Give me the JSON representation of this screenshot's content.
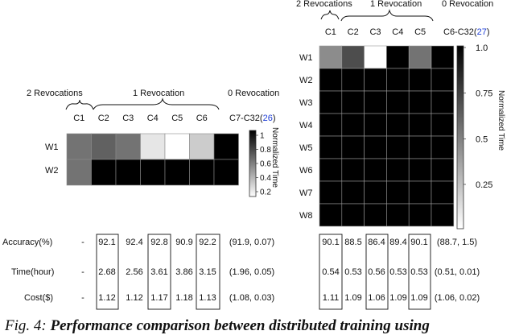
{
  "left": {
    "groups": [
      "2 Revocations",
      "1 Revocation",
      "0 Revocation"
    ],
    "columns": [
      "C1",
      "C2",
      "C3",
      "C4",
      "C5",
      "C6"
    ],
    "last_column_prefix": "C7-C32(",
    "last_column_ref": "26",
    "last_column_suffix": ")",
    "rows": [
      "W1",
      "W2"
    ],
    "colorbar": {
      "label": "Normalized Time",
      "ticks": [
        "1",
        "0.8",
        "0.6",
        "0.4",
        "0.2"
      ]
    }
  },
  "right": {
    "groups": [
      "2 Revocations",
      "1 Revocation",
      "0 Revocation"
    ],
    "columns": [
      "C1",
      "C2",
      "C3",
      "C4",
      "C5"
    ],
    "last_column_prefix": "C6-C32(",
    "last_column_ref": "27",
    "last_column_suffix": ")",
    "rows": [
      "W1",
      "W2",
      "W3",
      "W4",
      "W5",
      "W6",
      "W7",
      "W8"
    ],
    "colorbar": {
      "label": "Normalized Time",
      "ticks": [
        "1.0",
        "0.75",
        "0.5",
        "0.25"
      ]
    }
  },
  "metrics": {
    "labels": [
      "Accuracy(%)",
      "Time(hour)",
      "Cost($)"
    ],
    "left_values": [
      [
        "-",
        "92.1",
        "92.4",
        "92.8",
        "90.9",
        "92.2",
        "(91.9, 0.07)"
      ],
      [
        "-",
        "2.68",
        "2.56",
        "3.61",
        "3.86",
        "3.15",
        "(1.96, 0.05)"
      ],
      [
        "-",
        "1.12",
        "1.12",
        "1.17",
        "1.18",
        "1.13",
        "(1.08, 0.03)"
      ]
    ],
    "right_values": [
      [
        "90.1",
        "88.5",
        "86.4",
        "89.4",
        "90.1",
        "(88.7, 1.5)"
      ],
      [
        "0.54",
        "0.53",
        "0.56",
        "0.53",
        "0.53",
        "(0.51, 0.01)"
      ],
      [
        "1.11",
        "1.09",
        "1.06",
        "1.09",
        "1.09",
        "(1.06, 0.02)"
      ]
    ]
  },
  "heatmaps": {
    "left": {
      "values": [
        [
          0.55,
          0.62,
          0.55,
          0.1,
          0.0,
          0.2,
          1.0
        ],
        [
          0.55,
          1.0,
          1.0,
          1.0,
          1.0,
          1.0,
          1.0
        ]
      ]
    },
    "right": {
      "values": [
        [
          0.45,
          0.7,
          0.0,
          1.0,
          0.55,
          1.0
        ],
        [
          1.0,
          1.0,
          1.0,
          1.0,
          1.0,
          1.0
        ],
        [
          1.0,
          1.0,
          1.0,
          1.0,
          1.0,
          1.0
        ],
        [
          1.0,
          1.0,
          1.0,
          1.0,
          1.0,
          1.0
        ],
        [
          1.0,
          1.0,
          1.0,
          1.0,
          1.0,
          1.0
        ],
        [
          1.0,
          1.0,
          1.0,
          1.0,
          1.0,
          1.0
        ],
        [
          1.0,
          1.0,
          1.0,
          1.0,
          1.0,
          1.0
        ],
        [
          1.0,
          1.0,
          1.0,
          1.0,
          1.0,
          1.0
        ]
      ]
    }
  },
  "caption": {
    "prefix": "Fig. 4: ",
    "text": "Performance comparison between distributed training using"
  }
}
